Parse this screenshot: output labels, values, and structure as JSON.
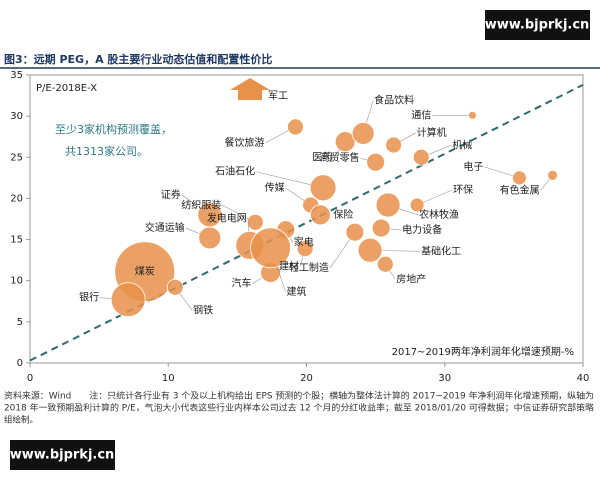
{
  "watermark": "www.bjprkj.cn",
  "chart_data": {
    "type": "bubble",
    "title": "图3：远期 PEG，A 股主要行业动态估值和配置性价比",
    "y_label": "P/E-2018E-X",
    "x_label": "2017~2019两年净利润年化增速预期-%",
    "annotation": [
      "至少3家机构预测覆盖，",
      "共1313家公司。"
    ],
    "arrow_label": "军工",
    "color": "#e8914a",
    "categories": [
      "煤炭",
      "银行",
      "钢铁",
      "交通运输",
      "证券",
      "纺织服装",
      "发电电网",
      "汽车",
      "家电",
      "建筑",
      "建材",
      "传媒",
      "保险",
      "石油石化",
      "餐饮旅游",
      "医药",
      "食品饮料",
      "商贸零售",
      "计算机",
      "通信",
      "机械",
      "电子",
      "有色金属",
      "环保",
      "农林牧渔",
      "电力设备",
      "轻工制造",
      "基础化工",
      "房地产"
    ],
    "x": [
      8.3,
      7.1,
      10.5,
      13.0,
      13.0,
      16.3,
      15.9,
      17.4,
      18.5,
      17.4,
      19.9,
      20.3,
      21.0,
      21.2,
      19.2,
      22.8,
      24.1,
      25.0,
      26.3,
      32.0,
      28.3,
      35.4,
      37.8,
      28.0,
      25.9,
      25.4,
      23.5,
      24.6,
      25.7
    ],
    "values": [
      11.1,
      7.7,
      9.2,
      15.2,
      18.0,
      17.1,
      14.3,
      11.0,
      16.2,
      14.0,
      13.9,
      19.2,
      18.0,
      21.3,
      28.7,
      26.9,
      27.9,
      24.4,
      26.5,
      30.1,
      25.0,
      22.5,
      22.8,
      19.2,
      19.2,
      16.4,
      15.9,
      13.7,
      12.0
    ],
    "sizes": [
      30,
      17,
      8,
      11,
      12,
      8,
      14,
      10,
      9,
      20,
      8,
      8,
      10,
      13,
      8,
      10,
      11,
      9,
      8,
      4,
      8,
      7,
      5,
      7,
      12,
      9,
      9,
      12,
      8
    ],
    "reference_line": {
      "x": [
        0,
        40
      ],
      "y": [
        0.3,
        33.8
      ]
    },
    "xlim": [
      0,
      40
    ],
    "xticks": [
      0,
      10,
      20,
      30,
      40
    ],
    "ylim": [
      0,
      35
    ],
    "yticks": [
      0,
      5,
      10,
      15,
      20,
      25,
      30,
      35
    ],
    "source": [
      "资料来源：Wind　　注：只统计各行业有 3 个及以上机构给出 EPS 预测的个股；横轴为整体法计算的 2017~2019 年净利润年化增速预期，纵轴为",
      "2018 年一致预期盈利计算的 P/E，气泡大小代表这些行业内样本公司过去 12 个月的分红收益率；截至 2018/01/20 可得数据；中信证券研究部策略",
      "组绘制。"
    ]
  }
}
